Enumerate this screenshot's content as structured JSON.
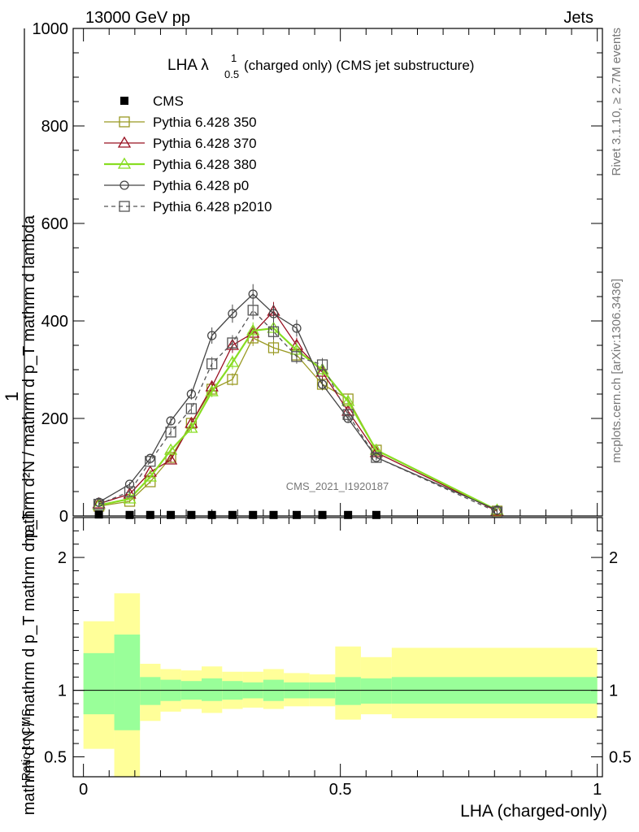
{
  "header": {
    "left": "13000 GeV pp",
    "right": "Jets"
  },
  "title": {
    "main": "LHA λ",
    "sup": "1",
    "sub": "0.5",
    "rest": " (charged only) (CMS jet substructure)"
  },
  "side_labels": {
    "rivet": "Rivet 3.1.10, ≥ 2.7M events",
    "mcplots": "mcplots.cern.ch [arXiv:1306.3436]"
  },
  "watermark": "CMS_2021_I1920187",
  "ylabel": {
    "one": "1",
    "denominator": "mathrm d N / mathrm d p_T mathrm d p_T",
    "numerator": "mathrm d²N / mathrm d p_T mathrm d lambda"
  },
  "ratio_ylabel": "Ratio to CMS",
  "xlabel": "LHA (charged-only)",
  "chart_data": {
    "type": "line",
    "xlabel": "LHA (charged-only)",
    "xlim": [
      -0.02,
      1.01
    ],
    "main_ylim": [
      0,
      1000
    ],
    "main_yticks": [
      "0",
      "200",
      "400",
      "600",
      "800",
      "1000"
    ],
    "ratio_ylim": [
      0.35,
      2.3
    ],
    "ratio_yticks": [
      "0.5",
      "1",
      "2"
    ],
    "xticks": [
      "0",
      "0.5",
      "1"
    ],
    "legend_position": "top-left",
    "cms": {
      "name": "CMS",
      "x": [
        0.03,
        0.09,
        0.13,
        0.17,
        0.21,
        0.25,
        0.29,
        0.33,
        0.37,
        0.415,
        0.465,
        0.515,
        0.57
      ],
      "values": [
        3,
        2,
        2,
        2,
        2,
        2,
        2,
        2,
        2,
        2,
        2,
        2,
        2
      ]
    },
    "series": [
      {
        "name": "Pythia 6.428 350",
        "color": "#999922",
        "marker": "square-open",
        "dash": false,
        "x": [
          0.03,
          0.09,
          0.13,
          0.17,
          0.21,
          0.25,
          0.29,
          0.33,
          0.37,
          0.415,
          0.465,
          0.515,
          0.57,
          0.805
        ],
        "values": [
          20,
          30,
          70,
          120,
          190,
          260,
          280,
          365,
          345,
          330,
          270,
          240,
          135,
          10
        ]
      },
      {
        "name": "Pythia 6.428 370",
        "color": "#991122",
        "marker": "triangle-open",
        "dash": false,
        "x": [
          0.03,
          0.09,
          0.13,
          0.17,
          0.21,
          0.25,
          0.29,
          0.33,
          0.37,
          0.415,
          0.465,
          0.515,
          0.57,
          0.805
        ],
        "values": [
          25,
          45,
          90,
          115,
          190,
          265,
          350,
          375,
          420,
          350,
          295,
          215,
          130,
          10
        ]
      },
      {
        "name": "Pythia 6.428 380",
        "color": "#88dd22",
        "marker": "triangle-open",
        "dash": false,
        "x": [
          0.03,
          0.09,
          0.13,
          0.17,
          0.21,
          0.25,
          0.29,
          0.33,
          0.37,
          0.415,
          0.465,
          0.515,
          0.57,
          0.805
        ],
        "values": [
          22,
          35,
          80,
          135,
          180,
          255,
          315,
          380,
          385,
          340,
          300,
          235,
          135,
          12
        ]
      },
      {
        "name": "Pythia 6.428 p0",
        "color": "#444444",
        "marker": "circle-open",
        "dash": false,
        "x": [
          0.03,
          0.09,
          0.13,
          0.17,
          0.21,
          0.25,
          0.29,
          0.33,
          0.37,
          0.415,
          0.465,
          0.515,
          0.57,
          0.805
        ],
        "values": [
          28,
          65,
          118,
          195,
          250,
          370,
          415,
          455,
          415,
          385,
          270,
          200,
          120,
          12
        ]
      },
      {
        "name": "Pythia 6.428 p2010",
        "color": "#555555",
        "marker": "square-open",
        "dash": true,
        "x": [
          0.03,
          0.09,
          0.13,
          0.17,
          0.21,
          0.25,
          0.29,
          0.33,
          0.37,
          0.415,
          0.465,
          0.515,
          0.57,
          0.805
        ],
        "values": [
          24,
          50,
          112,
          172,
          220,
          312,
          355,
          422,
          378,
          327,
          310,
          208,
          120,
          8
        ]
      }
    ],
    "ratio_bands": {
      "edges": [
        0.0,
        0.06,
        0.11,
        0.15,
        0.19,
        0.23,
        0.27,
        0.31,
        0.35,
        0.39,
        0.44,
        0.49,
        0.54,
        0.6,
        1.0
      ],
      "inner_upper": [
        1.28,
        1.42,
        1.1,
        1.08,
        1.07,
        1.09,
        1.07,
        1.06,
        1.08,
        1.06,
        1.06,
        1.1,
        1.09,
        1.1
      ],
      "inner_lower": [
        0.82,
        0.7,
        0.89,
        0.92,
        0.93,
        0.92,
        0.93,
        0.94,
        0.92,
        0.94,
        0.94,
        0.89,
        0.9,
        0.9
      ],
      "outer_upper": [
        1.52,
        1.73,
        1.2,
        1.16,
        1.15,
        1.18,
        1.14,
        1.14,
        1.16,
        1.13,
        1.12,
        1.33,
        1.25,
        1.32
      ],
      "outer_lower": [
        0.56,
        0.3,
        0.77,
        0.84,
        0.86,
        0.83,
        0.86,
        0.87,
        0.86,
        0.88,
        0.88,
        0.78,
        0.82,
        0.79
      ],
      "inner_color": "#99ff99",
      "outer_color": "#ffff99"
    }
  }
}
